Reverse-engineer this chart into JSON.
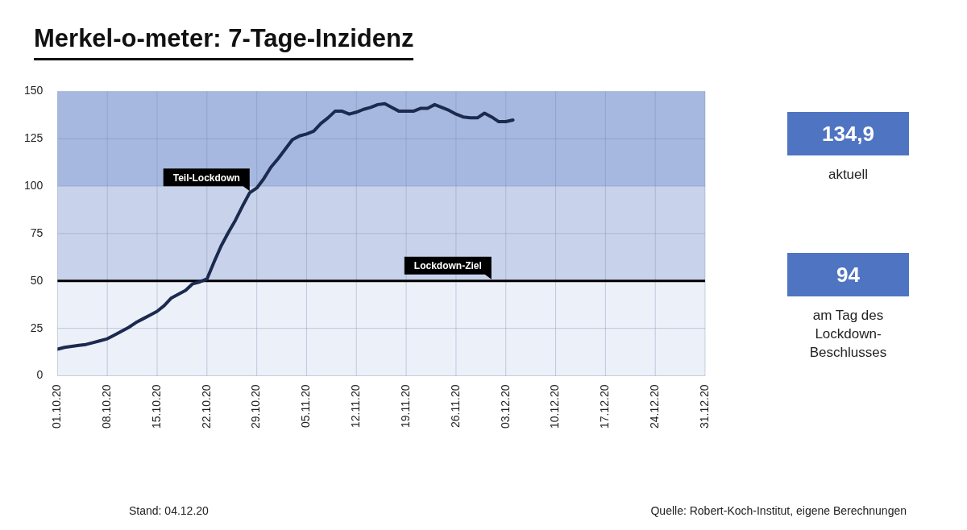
{
  "chart_data": [
    {
      "type": "line",
      "title": "Merkel-o-meter: 7-Tage-Inzidenz",
      "x": [
        "--10-01",
        "--10-02",
        "--10-03",
        "--10-04",
        "--10-05",
        "--10-06",
        "--10-07",
        "--10-08",
        "--10-09",
        "--10-10",
        "--10-11",
        "--10-12",
        "--10-13",
        "--10-14",
        "--10-15",
        "--10-16",
        "--10-17",
        "--10-18",
        "--10-19",
        "--10-20",
        "--10-21",
        "--10-22",
        "--10-23",
        "--10-24",
        "--10-25",
        "--10-26",
        "--10-27",
        "--10-28",
        "--10-29",
        "--10-30",
        "--10-31",
        "--11-01",
        "--11-02",
        "--11-03",
        "--11-04",
        "--11-05",
        "--11-06",
        "--11-07",
        "--11-08",
        "--11-09",
        "--11-10",
        "--11-11",
        "--11-12",
        "--11-13",
        "--11-14",
        "--11-15",
        "--11-16",
        "--11-17",
        "--11-18",
        "--11-19",
        "--11-20",
        "--11-21",
        "--11-22",
        "--11-23",
        "--11-24",
        "--11-25",
        "--11-26",
        "--11-27",
        "--11-28",
        "--11-29",
        "--11-30",
        "--12-01",
        "--12-02",
        "--12-03",
        "--12-04"
      ],
      "series": [
        {
          "color": "#1b2a4e",
          "values": [
            14,
            15,
            15.5,
            16,
            16.5,
            17.5,
            18.5,
            19.5,
            21.5,
            23.5,
            25.5,
            28,
            30,
            32,
            34,
            37,
            41,
            43,
            45,
            48.5,
            49.5,
            51,
            60,
            68.5,
            75.5,
            82,
            89.5,
            96.5,
            99,
            104,
            110,
            114.5,
            119.5,
            124.5,
            126.5,
            127.5,
            129,
            133,
            136,
            139.5,
            139.5,
            138,
            139,
            140.5,
            141.5,
            143,
            143.5,
            141.5,
            139.5,
            139.5,
            139.5,
            141,
            141,
            143,
            141.5,
            140,
            138,
            136.5,
            136,
            136,
            138.5,
            136.5,
            134,
            134,
            134.9
          ]
        }
      ],
      "xlim": [
        "--10-01",
        "--12-31"
      ],
      "xticks": [
        {
          "value": "--10-01",
          "label": "01.10.20"
        },
        {
          "value": "--10-08",
          "label": "08.10.20"
        },
        {
          "value": "--10-15",
          "label": "15.10.20"
        },
        {
          "value": "--10-22",
          "label": "22.10.20"
        },
        {
          "value": "--10-29",
          "label": "29.10.20"
        },
        {
          "value": "--11-05",
          "label": "05.11.20"
        },
        {
          "value": "--11-12",
          "label": "12.11.20"
        },
        {
          "value": "--11-19",
          "label": "19.11.20"
        },
        {
          "value": "--11-26",
          "label": "26.11.20"
        },
        {
          "value": "--12-03",
          "label": "03.12.20"
        },
        {
          "value": "--12-10",
          "label": "10.12.20"
        },
        {
          "value": "--12-17",
          "label": "17.12.20"
        },
        {
          "value": "--12-24",
          "label": "24.12.20"
        },
        {
          "value": "--12-31",
          "label": "31.12.20"
        }
      ],
      "ylim": [
        0,
        150
      ],
      "yticks": [
        0,
        25,
        50,
        75,
        100,
        125,
        150
      ],
      "grid": true,
      "legend": false,
      "marker": "none",
      "line_style": "solid",
      "bands": [
        {
          "axis": "y",
          "from": 0,
          "to": 50,
          "color": "#ecf0f8"
        },
        {
          "axis": "y",
          "from": 50,
          "to": 100,
          "color": "#c8d3eb"
        },
        {
          "axis": "y",
          "from": 100,
          "to": 150,
          "color": "#a6b8df"
        }
      ],
      "ref_lines": [
        {
          "axis": "y",
          "value": 50,
          "label": "Lockdown-Ziel",
          "color": "#000000",
          "line_style": "solid"
        }
      ],
      "annotations": [
        {
          "text": "Teil-Lockdown",
          "x": "--10-28",
          "y": 96.5
        },
        "Stand:  04.12.20",
        "Quelle: Robert-Koch-Institut, eigene Berechnungen"
      ]
    },
    {
      "type": "other",
      "annotations": [
        "134,9",
        "aktuell",
        "94",
        "am Tag des Lockdown-Beschlusses"
      ]
    }
  ]
}
